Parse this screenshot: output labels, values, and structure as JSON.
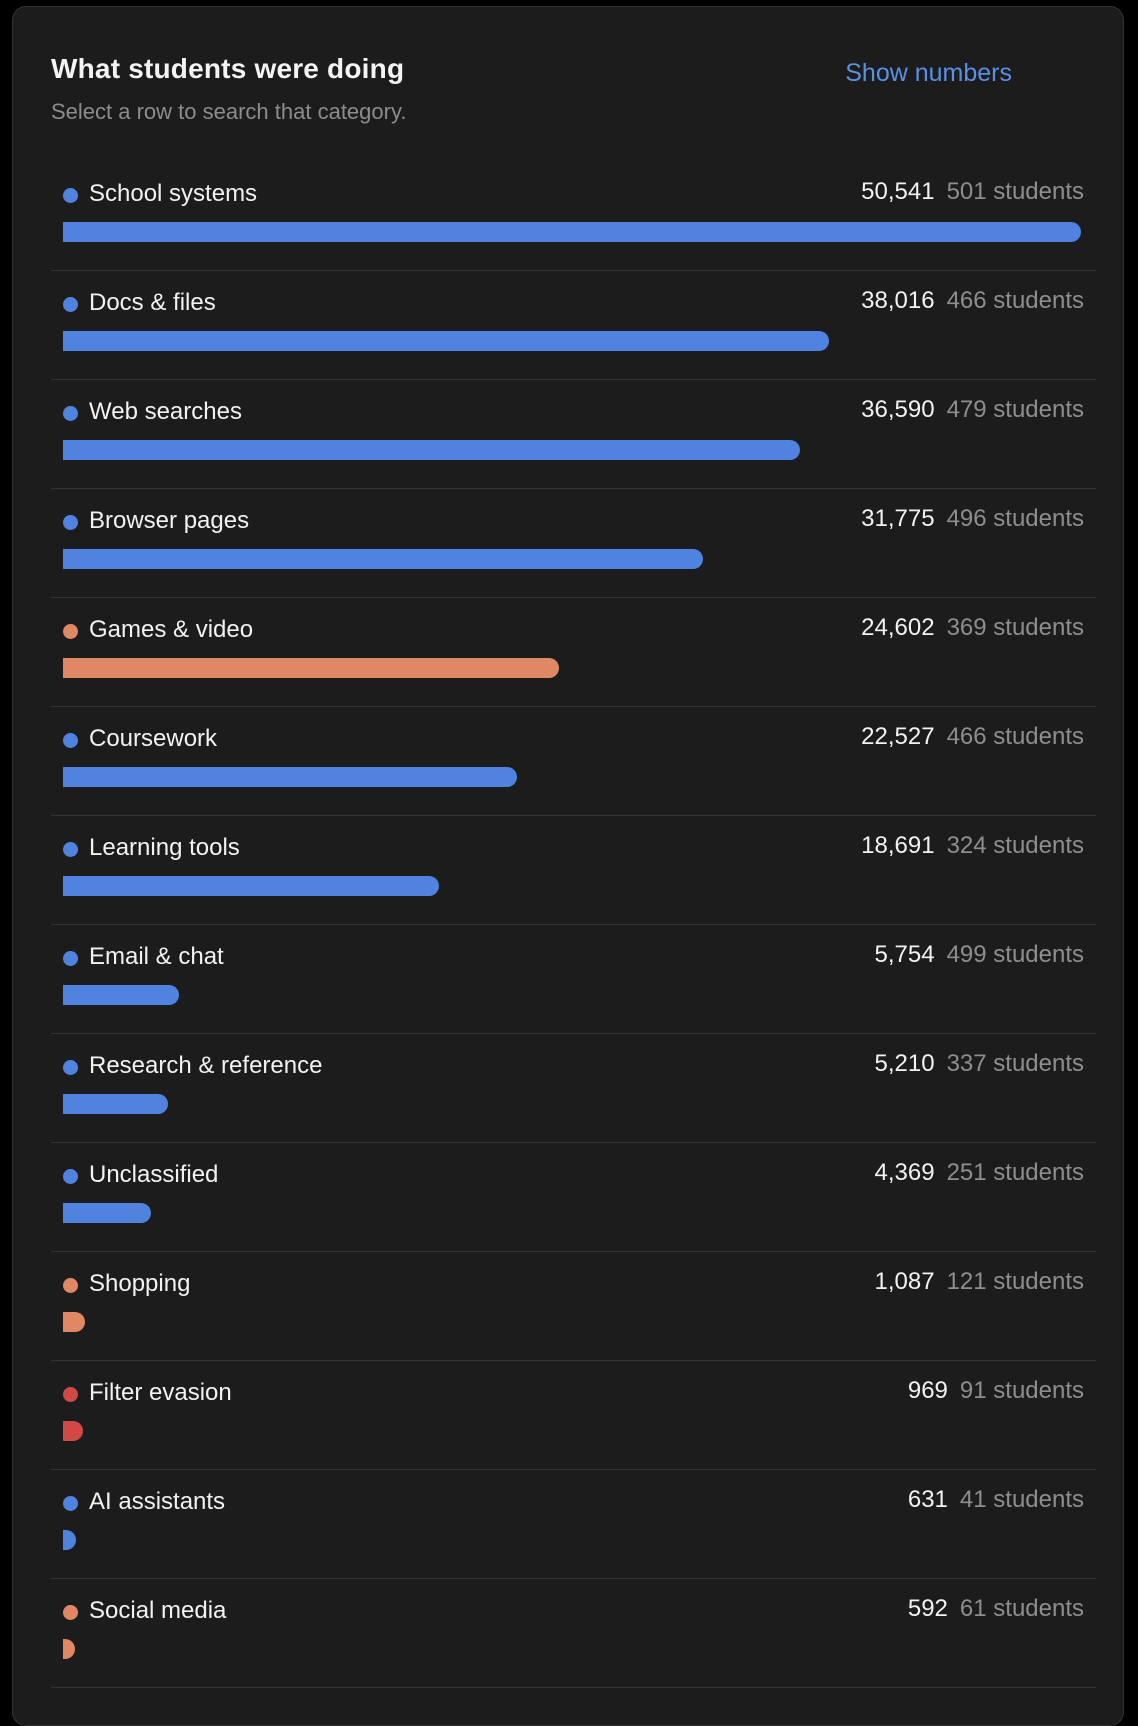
{
  "header": {
    "title": "What students were doing",
    "subtitle": "Select a row to search that category.",
    "show_numbers_label": "Show numbers"
  },
  "colors": {
    "blue": "#4f83df",
    "orange": "#e08764",
    "red": "#cf4a47"
  },
  "rows": [
    {
      "label": "School systems",
      "count": "50,541",
      "students": "501 students",
      "value": 50541,
      "color": "#4f83df"
    },
    {
      "label": "Docs & files",
      "count": "38,016",
      "students": "466 students",
      "value": 38016,
      "color": "#4f83df"
    },
    {
      "label": "Web searches",
      "count": "36,590",
      "students": "479 students",
      "value": 36590,
      "color": "#4f83df"
    },
    {
      "label": "Browser pages",
      "count": "31,775",
      "students": "496 students",
      "value": 31775,
      "color": "#4f83df"
    },
    {
      "label": "Games & video",
      "count": "24,602",
      "students": "369 students",
      "value": 24602,
      "color": "#e08764"
    },
    {
      "label": "Coursework",
      "count": "22,527",
      "students": "466 students",
      "value": 22527,
      "color": "#4f83df"
    },
    {
      "label": "Learning tools",
      "count": "18,691",
      "students": "324 students",
      "value": 18691,
      "color": "#4f83df"
    },
    {
      "label": "Email & chat",
      "count": "5,754",
      "students": "499 students",
      "value": 5754,
      "color": "#4f83df"
    },
    {
      "label": "Research & reference",
      "count": "5,210",
      "students": "337 students",
      "value": 5210,
      "color": "#4f83df"
    },
    {
      "label": "Unclassified",
      "count": "4,369",
      "students": "251 students",
      "value": 4369,
      "color": "#4f83df"
    },
    {
      "label": "Shopping",
      "count": "1,087",
      "students": "121 students",
      "value": 1087,
      "color": "#e08764"
    },
    {
      "label": "Filter evasion",
      "count": "969",
      "students": "91 students",
      "value": 969,
      "color": "#cf4a47"
    },
    {
      "label": "AI assistants",
      "count": "631",
      "students": "41 students",
      "value": 631,
      "color": "#4f83df"
    },
    {
      "label": "Social media",
      "count": "592",
      "students": "61 students",
      "value": 592,
      "color": "#e08764"
    }
  ]
}
